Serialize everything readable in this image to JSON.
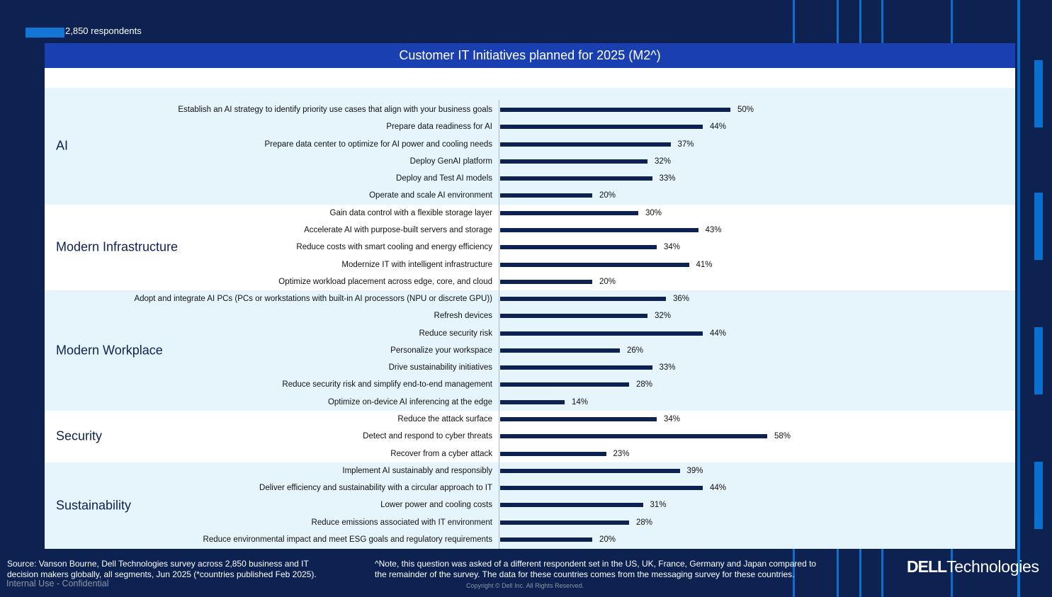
{
  "header": {
    "respondents": "2,850 respondents"
  },
  "colors": {
    "background": "#0d2250",
    "title_bar": "#1a3fb0",
    "bar": "#0d2250",
    "band_light": "#e6f4fb",
    "legend_swatch": "#1476d4"
  },
  "chart_data": {
    "type": "bar",
    "orientation": "horizontal",
    "title": "Customer IT Initiatives planned for 2025 (M2^)",
    "unit": "%",
    "xlim": [
      0,
      100
    ],
    "groups": [
      {
        "name": "AI",
        "items": [
          {
            "label": "Establish an AI strategy to identify priority use cases that align with your business goals",
            "value": 50,
            "display": "50%"
          },
          {
            "label": "Prepare data readiness for AI",
            "value": 44,
            "display": "44%"
          },
          {
            "label": "Prepare data center to optimize for AI power and cooling needs",
            "value": 37,
            "display": "37%"
          },
          {
            "label": "Deploy GenAI platform",
            "value": 32,
            "display": "32%"
          },
          {
            "label": "Deploy and Test AI models",
            "value": 33,
            "display": "33%"
          },
          {
            "label": "Operate and scale AI environment",
            "value": 20,
            "display": "20%"
          }
        ]
      },
      {
        "name": "Modern Infrastructure",
        "items": [
          {
            "label": "Gain data control with a flexible storage layer",
            "value": 30,
            "display": "30%"
          },
          {
            "label": "Accelerate AI with purpose-built servers and storage",
            "value": 43,
            "display": "43%"
          },
          {
            "label": "Reduce costs with smart cooling and energy efficiency",
            "value": 34,
            "display": "34%"
          },
          {
            "label": "Modernize IT with intelligent infrastructure",
            "value": 41,
            "display": "41%"
          },
          {
            "label": "Optimize workload placement across edge, core, and cloud",
            "value": 20,
            "display": "20%"
          }
        ]
      },
      {
        "name": "Modern Workplace",
        "items": [
          {
            "label": "Adopt and integrate AI PCs  (PCs or workstations with built-in AI processors (NPU or discrete GPU))",
            "value": 36,
            "display": "36%"
          },
          {
            "label": "Refresh devices",
            "value": 32,
            "display": "32%"
          },
          {
            "label": "Reduce security risk",
            "value": 44,
            "display": "44%"
          },
          {
            "label": "Personalize your workspace",
            "value": 26,
            "display": "26%"
          },
          {
            "label": "Drive sustainability initiatives",
            "value": 33,
            "display": "33%"
          },
          {
            "label": "Reduce security risk and simplify end-to-end management",
            "value": 28,
            "display": "28%"
          },
          {
            "label": "Optimize on-device AI inferencing at the edge",
            "value": 14,
            "display": "14%"
          }
        ]
      },
      {
        "name": "Security",
        "items": [
          {
            "label": "Reduce the attack surface",
            "value": 34,
            "display": "34%"
          },
          {
            "label": "Detect and respond to cyber threats",
            "value": 58,
            "display": "58%"
          },
          {
            "label": "Recover from a cyber attack",
            "value": 23,
            "display": "23%"
          }
        ]
      },
      {
        "name": "Sustainability",
        "items": [
          {
            "label": "Implement AI sustainably and responsibly",
            "value": 39,
            "display": "39%"
          },
          {
            "label": "Deliver efficiency and sustainability with a circular approach to IT",
            "value": 44,
            "display": "44%"
          },
          {
            "label": "Lower power and cooling costs",
            "value": 31,
            "display": "31%"
          },
          {
            "label": "Reduce emissions associated with IT environment",
            "value": 28,
            "display": "28%"
          },
          {
            "label": "Reduce environmental impact and meet ESG goals and regulatory requirements",
            "value": 20,
            "display": "20%"
          }
        ]
      }
    ]
  },
  "footer": {
    "source_line1": "Source: Vanson Bourne, Dell Technologies survey across 2,850 business and IT",
    "source_line2": "decision makers globally, all segments, Jun 2025 (*countries published Feb 2025).",
    "internal": "Internal Use - Confidential",
    "note_line1": "^Note, this question was asked of a different respondent set in the US, UK, France, Germany and Japan compared to",
    "note_line2": "the remainder of the survey. The data for these countries comes from the messaging survey for these countries.",
    "copyright": "Copyright © Dell Inc. All Rights Reserved.",
    "logo_bold": "DELL",
    "logo_text": "Technologies"
  }
}
